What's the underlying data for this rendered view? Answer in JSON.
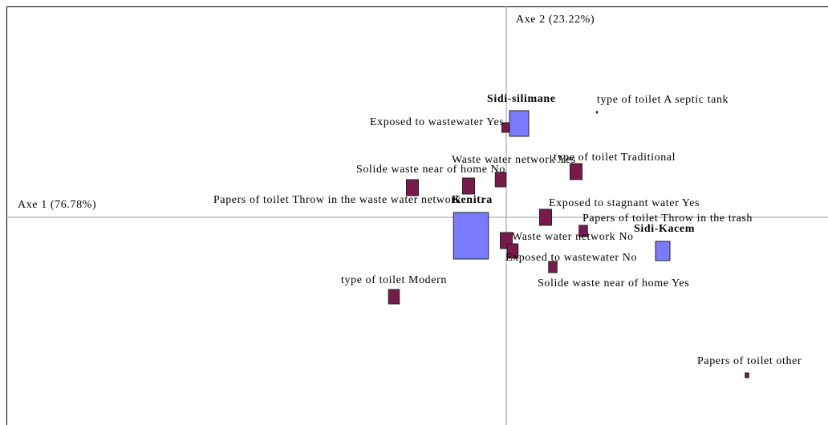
{
  "chart_data": {
    "type": "scatter",
    "x_label": "Axe 1 (76.78%)",
    "y_label": "Axe 2 (23.22%)",
    "xlim": [
      -6.23,
      4.01
    ],
    "ylim": [
      -2.59,
      2.63
    ],
    "points": [
      {
        "label": "Sidi-silimane",
        "x": 0.16,
        "y": 1.17,
        "size": 0.32,
        "color": "#7b7bff"
      },
      {
        "label": "Kenitra",
        "x": -0.44,
        "y": -0.23,
        "size": 0.58,
        "color": "#7b7bff"
      },
      {
        "label": "Sidi-Kacem",
        "x": 1.95,
        "y": -0.42,
        "size": 0.24,
        "color": "#7b7bff"
      },
      {
        "label": "Exposed to wastewater Yes",
        "x": -0.01,
        "y": 1.12,
        "size": 0.12,
        "color": "#7a1a4a"
      },
      {
        "label": "type of toilet A septic tank",
        "x": 1.13,
        "y": 1.31,
        "size": 0.02,
        "color": "#7a1a4a"
      },
      {
        "label": "Waste water network Yes",
        "x": -0.07,
        "y": 0.47,
        "size": 0.18,
        "color": "#7a1a4a"
      },
      {
        "label": "type of toilet Traditional",
        "x": 0.87,
        "y": 0.57,
        "size": 0.2,
        "color": "#7a1a4a"
      },
      {
        "label": "Solide waste near of home No",
        "x": -1.17,
        "y": 0.37,
        "size": 0.2,
        "color": "#7a1a4a"
      },
      {
        "label": "Papers of toilet Throw in the waste water network",
        "x": -0.47,
        "y": 0.39,
        "size": 0.2,
        "color": "#7a1a4a"
      },
      {
        "label": "Exposed to stagnant water Yes",
        "x": 0.49,
        "y": 0.0,
        "size": 0.2,
        "color": "#7a1a4a"
      },
      {
        "label": "Papers of toilet Throw in the trash",
        "x": 0.96,
        "y": -0.17,
        "size": 0.14,
        "color": "#7a1a4a"
      },
      {
        "label": "Solide waste near of home Yes",
        "x": 0.58,
        "y": -0.62,
        "size": 0.14,
        "color": "#7a1a4a"
      },
      {
        "label": "type of toilet Modern",
        "x": -1.4,
        "y": -0.99,
        "size": 0.18,
        "color": "#7a1a4a"
      },
      {
        "label": "Papers of toilet other",
        "x": 3.0,
        "y": -1.97,
        "size": 0.06,
        "color": "#7a1a4a"
      },
      {
        "label": "Waste water network No",
        "x": 0.0,
        "y": -0.29,
        "size": 0.2,
        "color": "#7a1a4a"
      },
      {
        "label": "Exposed to wastewater No",
        "x": 0.08,
        "y": -0.42,
        "size": 0.18,
        "color": "#7a1a4a"
      }
    ]
  }
}
